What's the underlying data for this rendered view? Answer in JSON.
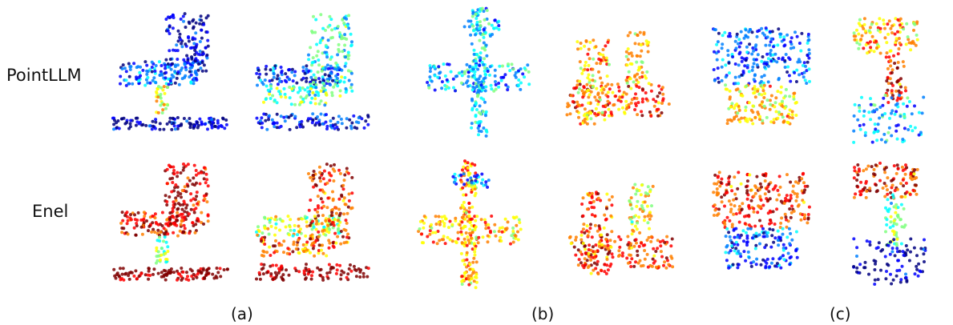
{
  "rows": [
    {
      "label": "PointLLM",
      "palette": "cool"
    },
    {
      "label": "Enel",
      "palette": "warm"
    }
  ],
  "captions": [
    "(a)",
    "(b)",
    "(c)"
  ],
  "objects": [
    "chair",
    "chair",
    "airplane",
    "airplane",
    "lamp",
    "lamp"
  ],
  "colors": {
    "jet": [
      "#00007f",
      "#0000ff",
      "#0080ff",
      "#00ffff",
      "#80ff80",
      "#ffff00",
      "#ff8000",
      "#ff0000",
      "#7f0000"
    ]
  }
}
